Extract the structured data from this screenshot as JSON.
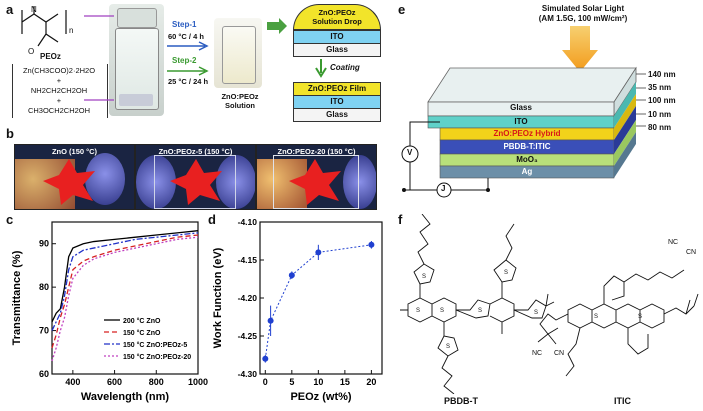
{
  "panel_a": {
    "label": "a",
    "polymer_name": "PEOz",
    "subscript_n": "n",
    "reagents": [
      "Zn(CH3COO)2·2H2O",
      "+",
      "NH2CH2CH2OH",
      "+",
      "CH3OCH2CH2OH"
    ],
    "step1_label": "Step-1",
    "step1_cond": "60 °C / 4 h",
    "step2_label": "Step-2",
    "step2_cond": "25 °C / 24 h",
    "solution_label_1": "ZnO:PEOz",
    "solution_label_2": "Solution",
    "drop_label_1": "ZnO:PEOz",
    "drop_label_2": "Solution Drop",
    "ito": "ITO",
    "glass": "Glass",
    "coating": "Coating",
    "film_label": "ZnO:PEOz Film"
  },
  "panel_b": {
    "label": "b",
    "photos": [
      "ZnO (150 °C)",
      "ZnO:PEOz-5 (150 °C)",
      "ZnO:PEOz-20 (150 °C)"
    ]
  },
  "panel_c": {
    "label": "c"
  },
  "panel_d": {
    "label": "d"
  },
  "panel_e": {
    "label": "e",
    "light_1": "Simulated Solar Light",
    "light_2": "(AM 1.5G, 100 mW/cm²)",
    "layers": [
      "Glass",
      "ITO",
      "ZnO:PEOz Hybrid",
      "PBDB-T:ITIC",
      "MoO₃",
      "Ag"
    ],
    "thicknesses": [
      "140 nm",
      "35 nm",
      "100 nm",
      "10 nm",
      "80 nm"
    ],
    "voltmeter": "V",
    "ammeter": "J",
    "colors": {
      "glass": "#e8f0f0",
      "ito": "#5fd1c9",
      "zno": "#f2d21a",
      "active": "#3a4fb8",
      "moo3": "#b8e07a",
      "ag": "#6c8fa8"
    }
  },
  "panel_f": {
    "label": "f",
    "mol1": "PBDB-T",
    "mol2": "ITIC",
    "groups": [
      "NC",
      "CN",
      "NC",
      "CN"
    ]
  },
  "chart_data": [
    {
      "type": "line",
      "xlabel": "Wavelength (nm)",
      "ylabel": "Transmittance (%)",
      "xlim": [
        300,
        1000
      ],
      "ylim": [
        60,
        95
      ],
      "xticks": [
        "400",
        "600",
        "800",
        "1000"
      ],
      "yticks": [
        "60",
        "70",
        "80",
        "90"
      ],
      "series": [
        {
          "name": "200 °C ZnO",
          "color": "#000000",
          "dash": "",
          "x": [
            300,
            320,
            340,
            360,
            380,
            400,
            450,
            500,
            600,
            700,
            800,
            900,
            1000
          ],
          "y": [
            72,
            74,
            75,
            80,
            87,
            89,
            90,
            90.5,
            91,
            91.5,
            92,
            92.5,
            93
          ]
        },
        {
          "name": "150 °C ZnO",
          "color": "#d62020",
          "dash": "5,3",
          "x": [
            300,
            320,
            340,
            360,
            380,
            400,
            450,
            500,
            600,
            700,
            800,
            900,
            1000
          ],
          "y": [
            66,
            69,
            73,
            76,
            80,
            84,
            86,
            87,
            88.5,
            89.5,
            90.5,
            91.5,
            92
          ]
        },
        {
          "name": "150 °C ZnO:PEOz-5",
          "color": "#2030c8",
          "dash": "6,2,2,2",
          "x": [
            300,
            320,
            340,
            360,
            380,
            400,
            450,
            500,
            600,
            700,
            800,
            900,
            1000
          ],
          "y": [
            70,
            72,
            74,
            78,
            84,
            87,
            88.5,
            89,
            90,
            91,
            91.5,
            92,
            92.5
          ]
        },
        {
          "name": "150 °C ZnO:PEOz-20",
          "color": "#c040c0",
          "dash": "2,2",
          "x": [
            300,
            320,
            340,
            360,
            380,
            400,
            450,
            500,
            600,
            700,
            800,
            900,
            1000
          ],
          "y": [
            63,
            66,
            70,
            73,
            78,
            82,
            85,
            86.5,
            88,
            89,
            90,
            91,
            91.5
          ]
        }
      ],
      "legend": "bottom-right"
    },
    {
      "type": "scatter",
      "xlabel": "PEOz (wt%)",
      "ylabel": "Work Function (eV)",
      "xlim": [
        -1,
        22
      ],
      "ylim": [
        -4.3,
        -4.1
      ],
      "xticks": [
        "0",
        "5",
        "10",
        "15",
        "20"
      ],
      "yticks": [
        "-4.10",
        "-4.15",
        "-4.20",
        "-4.25",
        "-4.30"
      ],
      "series": [
        {
          "color": "#2040d0",
          "x": [
            0,
            1,
            5,
            10,
            20
          ],
          "y": [
            -4.28,
            -4.23,
            -4.17,
            -4.14,
            -4.13
          ],
          "err": [
            0.005,
            0.02,
            0.005,
            0.01,
            0.005
          ]
        }
      ]
    }
  ]
}
